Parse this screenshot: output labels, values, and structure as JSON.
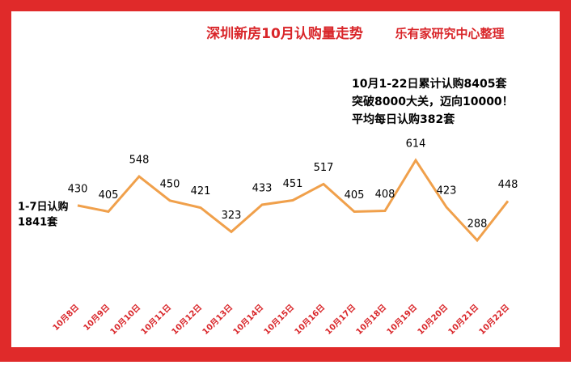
{
  "chart_data": {
    "type": "line",
    "title": "深圳新房10月认购量走势",
    "source": "乐有家研究中心整理",
    "annotations": [
      "10月1-22日累计认购8405套",
      "突破8000大关，迈向10000！",
      "平均每日认购382套"
    ],
    "side_note": [
      "1-7日认购",
      "1841套"
    ],
    "categories": [
      "10月8日",
      "10月9日",
      "10月10日",
      "10月11日",
      "10月12日",
      "10月13日",
      "10月14日",
      "10月15日",
      "10月16日",
      "10月17日",
      "10月18日",
      "10月19日",
      "10月20日",
      "10月21日",
      "10月22日"
    ],
    "values": [
      430,
      405,
      548,
      450,
      421,
      323,
      433,
      451,
      517,
      405,
      408,
      614,
      423,
      288,
      448
    ],
    "color": "#f0a04b"
  }
}
